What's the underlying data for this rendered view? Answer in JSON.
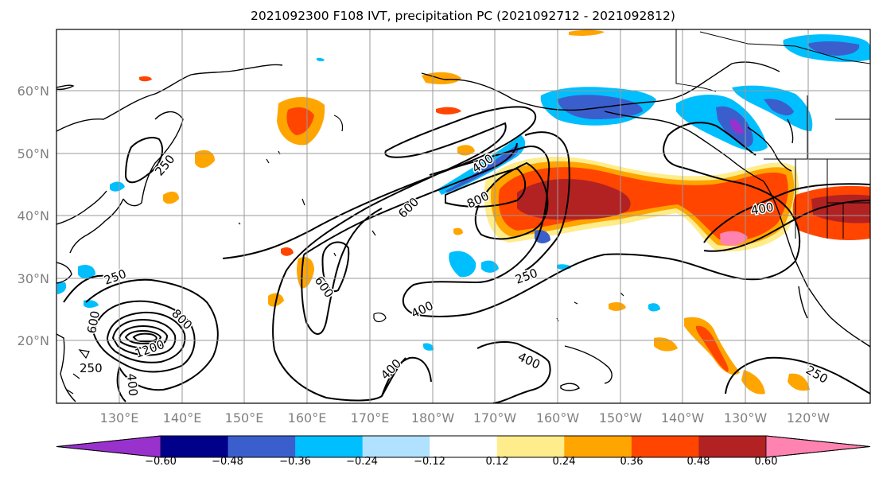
{
  "title": "2021092300 F108 IVT, precipitation PC (2021092712 - 2021092812)",
  "map": {
    "lon_labels": [
      "130°E",
      "140°E",
      "150°E",
      "160°E",
      "170°E",
      "180°W",
      "170°W",
      "160°W",
      "150°W",
      "140°W",
      "130°W",
      "120°W"
    ],
    "lat_labels": [
      "60°N",
      "50°N",
      "40°N",
      "30°N",
      "20°N"
    ],
    "extent": {
      "lon_min": 120,
      "lon_max": 250,
      "lat_min": 10,
      "lat_max": 70
    },
    "ivt_contour_labels": [
      "250",
      "250",
      "250",
      "250",
      "250",
      "400",
      "400",
      "400",
      "400",
      "400",
      "400",
      "600",
      "600",
      "600",
      "800",
      "800",
      "1200"
    ]
  },
  "colorbar": {
    "ticks": [
      "−0.60",
      "−0.48",
      "−0.36",
      "−0.24",
      "−0.12",
      "0.12",
      "0.24",
      "0.36",
      "0.48",
      "0.60"
    ],
    "levels": [
      -0.6,
      -0.48,
      -0.36,
      -0.24,
      -0.12,
      0.12,
      0.24,
      0.36,
      0.48,
      0.6
    ],
    "colors": [
      "#9932cc",
      "#00008b",
      "#3a5fcd",
      "#00bfff",
      "#b0e2ff",
      "#ffffff",
      "#ffec8b",
      "#ffa500",
      "#ff4500",
      "#b22222",
      "#ff83b0"
    ]
  }
}
